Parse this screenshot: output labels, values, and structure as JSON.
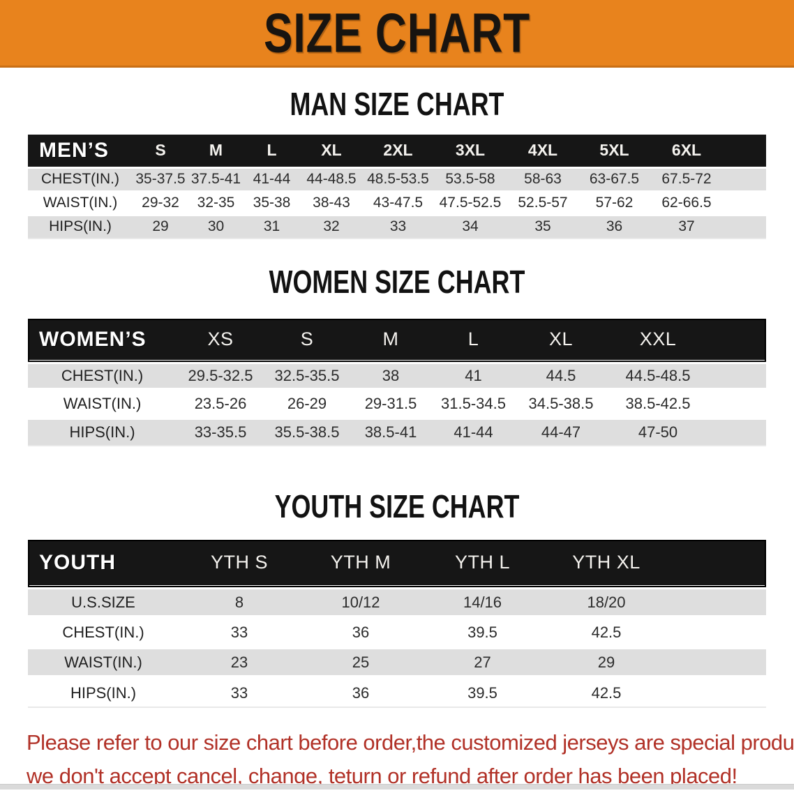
{
  "banner": {
    "title": "SIZE CHART",
    "bg_color": "#E8831D"
  },
  "colors": {
    "header_black": "#161616",
    "stripe_gray": "#DEDEDE",
    "disclaimer_red": "#B13127"
  },
  "sections": {
    "men": {
      "heading": "MAN SIZE CHART",
      "table": {
        "label": "MEN’S",
        "columns": [
          "S",
          "M",
          "L",
          "XL",
          "2XL",
          "3XL",
          "4XL",
          "5XL",
          "6XL"
        ],
        "rows": [
          {
            "label": "CHEST(IN.)",
            "values": [
              "35-37.5",
              "37.5-41",
              "41-44",
              "44-48.5",
              "48.5-53.5",
              "53.5-58",
              "58-63",
              "63-67.5",
              "67.5-72"
            ]
          },
          {
            "label": "WAIST(IN.)",
            "values": [
              "29-32",
              "32-35",
              "35-38",
              "38-43",
              "43-47.5",
              "47.5-52.5",
              "52.5-57",
              "57-62",
              "62-66.5"
            ]
          },
          {
            "label": "HIPS(IN.)",
            "values": [
              "29",
              "30",
              "31",
              "32",
              "33",
              "34",
              "35",
              "36",
              "37"
            ]
          }
        ]
      }
    },
    "women": {
      "heading": "WOMEN SIZE CHART",
      "table": {
        "label": "WOMEN’S",
        "columns": [
          "XS",
          "S",
          "M",
          "L",
          "XL",
          "XXL"
        ],
        "rows": [
          {
            "label": "CHEST(IN.)",
            "values": [
              "29.5-32.5",
              "32.5-35.5",
              "38",
              "41",
              "44.5",
              "44.5-48.5"
            ]
          },
          {
            "label": "WAIST(IN.)",
            "values": [
              "23.5-26",
              "26-29",
              "29-31.5",
              "31.5-34.5",
              "34.5-38.5",
              "38.5-42.5"
            ]
          },
          {
            "label": "HIPS(IN.)",
            "values": [
              "33-35.5",
              "35.5-38.5",
              "38.5-41",
              "41-44",
              "44-47",
              "47-50"
            ]
          }
        ]
      }
    },
    "youth": {
      "heading": "YOUTH SIZE CHART",
      "table": {
        "label": "YOUTH",
        "columns": [
          "YTH S",
          "YTH M",
          "YTH L",
          "YTH XL"
        ],
        "rows": [
          {
            "label": "U.S.SIZE",
            "values": [
              "8",
              "10/12",
              "14/16",
              "18/20"
            ]
          },
          {
            "label": "CHEST(IN.)",
            "values": [
              "33",
              "36",
              "39.5",
              "42.5"
            ]
          },
          {
            "label": "WAIST(IN.)",
            "values": [
              "23",
              "25",
              "27",
              "29"
            ]
          },
          {
            "label": "HIPS(IN.)",
            "values": [
              "33",
              "36",
              "39.5",
              "42.5"
            ]
          }
        ]
      }
    }
  },
  "disclaimer": {
    "line1": "Please refer to our size chart before order,the customized jerseys are special products,",
    "line2": "we don't accept cancel, change, teturn or refund after order has been placed!"
  }
}
